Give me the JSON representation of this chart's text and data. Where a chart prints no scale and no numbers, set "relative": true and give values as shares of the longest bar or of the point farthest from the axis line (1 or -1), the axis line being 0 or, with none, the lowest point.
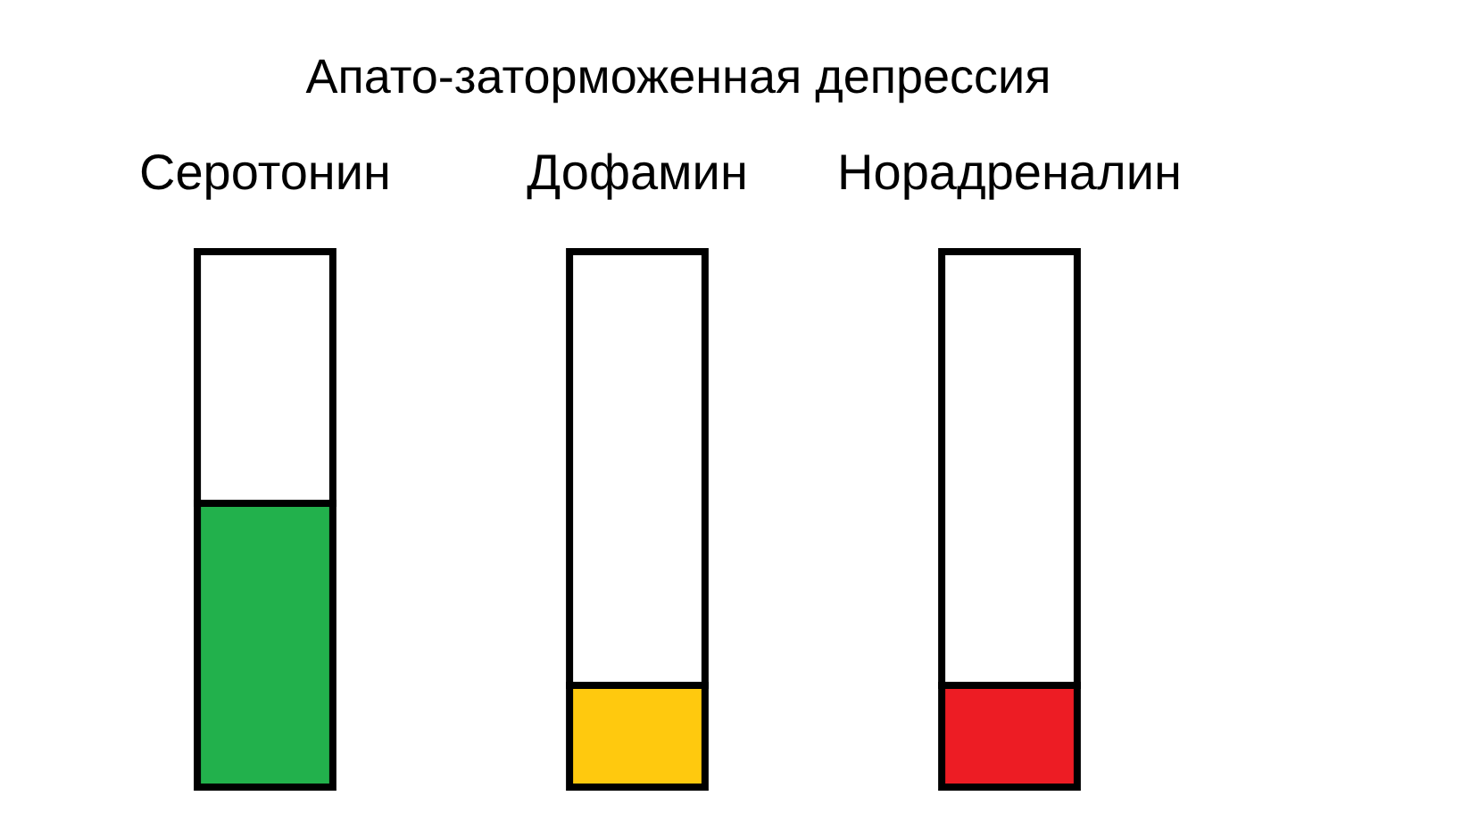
{
  "chart_data": {
    "type": "bar",
    "title": "Апато-заторможенная депрессия",
    "categories": [
      "Серотонин",
      "Дофамин",
      "Норадреналин"
    ],
    "relative": true,
    "stacked": true,
    "series": [
      {
        "colors": [
          "#22b14c",
          "#ffc90e",
          "#ed1c24"
        ],
        "values": [
          0.53,
          0.19,
          0.19
        ]
      },
      {
        "color": "#ffffff",
        "values": [
          0.47,
          0.81,
          0.81
        ]
      }
    ]
  }
}
